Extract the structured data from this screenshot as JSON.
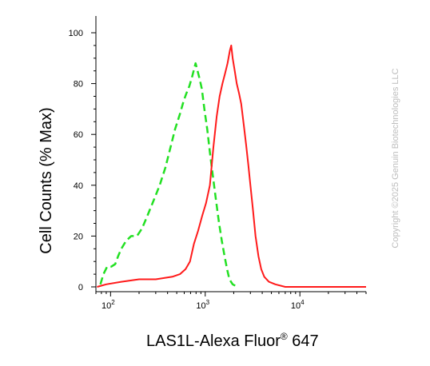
{
  "chart_data": {
    "type": "line",
    "xlabel": "LAS1L-Alexa Fluor",
    "xlabel_sup": "®",
    "xlabel_suffix": " 647",
    "ylabel": "Cell Counts (% Max)",
    "x_scale": "log",
    "xlim": [
      70,
      50000
    ],
    "ylim": [
      0,
      100
    ],
    "y_ticks": [
      0,
      20,
      40,
      60,
      80,
      100
    ],
    "x_ticks": [
      {
        "value": 100,
        "base": "10",
        "exp": "2"
      },
      {
        "value": 1000,
        "base": "10",
        "exp": "3"
      },
      {
        "value": 10000,
        "base": "10",
        "exp": "4"
      }
    ],
    "grid": false,
    "series": [
      {
        "color": "#22e022",
        "style": "dashed",
        "points": [
          [
            78,
            1
          ],
          [
            84,
            5
          ],
          [
            92,
            8
          ],
          [
            102,
            8
          ],
          [
            112,
            9
          ],
          [
            120,
            12
          ],
          [
            130,
            15
          ],
          [
            145,
            18
          ],
          [
            165,
            20
          ],
          [
            190,
            20
          ],
          [
            215,
            23
          ],
          [
            245,
            28
          ],
          [
            285,
            34
          ],
          [
            330,
            40
          ],
          [
            380,
            47
          ],
          [
            430,
            55
          ],
          [
            480,
            62
          ],
          [
            540,
            68
          ],
          [
            590,
            73
          ],
          [
            630,
            76
          ],
          [
            680,
            79
          ],
          [
            730,
            83
          ],
          [
            790,
            88
          ],
          [
            830,
            85
          ],
          [
            870,
            82
          ],
          [
            920,
            78
          ],
          [
            980,
            70
          ],
          [
            1050,
            62
          ],
          [
            1120,
            53
          ],
          [
            1200,
            44
          ],
          [
            1300,
            34
          ],
          [
            1400,
            25
          ],
          [
            1500,
            18
          ],
          [
            1600,
            12
          ],
          [
            1700,
            7
          ],
          [
            1800,
            3
          ],
          [
            1950,
            1
          ],
          [
            2200,
            0
          ]
        ]
      },
      {
        "color": "#ff1a1a",
        "style": "solid",
        "points": [
          [
            72,
            0
          ],
          [
            90,
            1
          ],
          [
            130,
            2
          ],
          [
            200,
            3
          ],
          [
            300,
            3
          ],
          [
            450,
            4
          ],
          [
            540,
            5
          ],
          [
            620,
            7
          ],
          [
            690,
            10
          ],
          [
            760,
            17
          ],
          [
            840,
            22
          ],
          [
            930,
            28
          ],
          [
            1020,
            33
          ],
          [
            1120,
            40
          ],
          [
            1220,
            55
          ],
          [
            1320,
            67
          ],
          [
            1420,
            75
          ],
          [
            1520,
            80
          ],
          [
            1620,
            84
          ],
          [
            1720,
            88
          ],
          [
            1820,
            93
          ],
          [
            1880,
            95
          ],
          [
            1950,
            90
          ],
          [
            2050,
            85
          ],
          [
            2150,
            80
          ],
          [
            2280,
            76
          ],
          [
            2400,
            72
          ],
          [
            2550,
            64
          ],
          [
            2700,
            56
          ],
          [
            2850,
            48
          ],
          [
            3000,
            40
          ],
          [
            3200,
            30
          ],
          [
            3400,
            20
          ],
          [
            3650,
            12
          ],
          [
            3900,
            7
          ],
          [
            4200,
            4
          ],
          [
            4700,
            2
          ],
          [
            5500,
            1
          ],
          [
            7000,
            0
          ],
          [
            20000,
            0
          ],
          [
            50000,
            0
          ]
        ]
      }
    ]
  },
  "watermark": "Copyright ©2025 Genuin Biotechnologies LLC"
}
